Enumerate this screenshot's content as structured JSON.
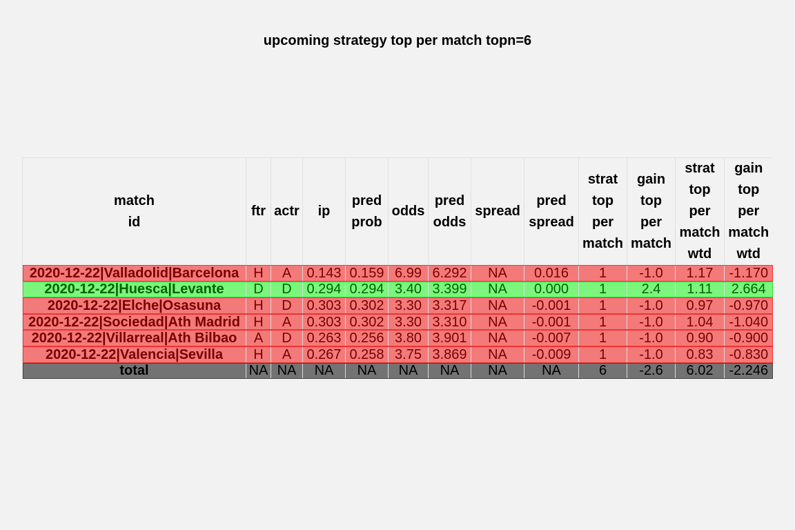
{
  "chart_data": {
    "type": "table",
    "title": "upcoming strategy top per match topn=6",
    "columns": [
      [
        "match",
        "id"
      ],
      [
        "ftr"
      ],
      [
        "actr"
      ],
      [
        "ip"
      ],
      [
        "pred",
        "prob"
      ],
      [
        "odds"
      ],
      [
        "pred",
        "odds"
      ],
      [
        "spread"
      ],
      [
        "pred",
        "spread"
      ],
      [
        "strat",
        "top",
        "per",
        "match"
      ],
      [
        "gain",
        "top",
        "per",
        "match"
      ],
      [
        "strat",
        "top",
        "per",
        "match",
        "wtd"
      ],
      [
        "gain",
        "top",
        "per",
        "match",
        "wtd"
      ]
    ],
    "rows": [
      {
        "status": "loss",
        "cells": [
          "2020-12-22|Valladolid|Barcelona",
          "H",
          "A",
          "0.143",
          "0.159",
          "6.99",
          "6.292",
          "NA",
          "0.016",
          "1",
          "-1.0",
          "1.17",
          "-1.170"
        ]
      },
      {
        "status": "win",
        "cells": [
          "2020-12-22|Huesca|Levante",
          "D",
          "D",
          "0.294",
          "0.294",
          "3.40",
          "3.399",
          "NA",
          "0.000",
          "1",
          "2.4",
          "1.11",
          "2.664"
        ]
      },
      {
        "status": "loss",
        "cells": [
          "2020-12-22|Elche|Osasuna",
          "H",
          "D",
          "0.303",
          "0.302",
          "3.30",
          "3.317",
          "NA",
          "-0.001",
          "1",
          "-1.0",
          "0.97",
          "-0.970"
        ]
      },
      {
        "status": "loss",
        "cells": [
          "2020-12-22|Sociedad|Ath Madrid",
          "H",
          "A",
          "0.303",
          "0.302",
          "3.30",
          "3.310",
          "NA",
          "-0.001",
          "1",
          "-1.0",
          "1.04",
          "-1.040"
        ]
      },
      {
        "status": "loss",
        "cells": [
          "2020-12-22|Villarreal|Ath Bilbao",
          "A",
          "D",
          "0.263",
          "0.256",
          "3.80",
          "3.901",
          "NA",
          "-0.007",
          "1",
          "-1.0",
          "0.90",
          "-0.900"
        ]
      },
      {
        "status": "loss",
        "cells": [
          "2020-12-22|Valencia|Sevilla",
          "H",
          "A",
          "0.267",
          "0.258",
          "3.75",
          "3.869",
          "NA",
          "-0.009",
          "1",
          "-1.0",
          "0.83",
          "-0.830"
        ]
      },
      {
        "status": "total",
        "cells": [
          "total",
          "NA",
          "NA",
          "NA",
          "NA",
          "NA",
          "NA",
          "NA",
          "NA",
          "6",
          "-2.6",
          "6.02",
          "-2.246"
        ]
      }
    ],
    "colors": {
      "loss_bg": "#f47a7a",
      "loss_text": "#7a0000",
      "loss_border": "#ee3333",
      "win_bg": "#7cf57c",
      "win_text": "#006400",
      "win_border": "#33dd33",
      "total_bg": "#737373",
      "total_text": "#000000",
      "total_border": "#444444"
    }
  }
}
